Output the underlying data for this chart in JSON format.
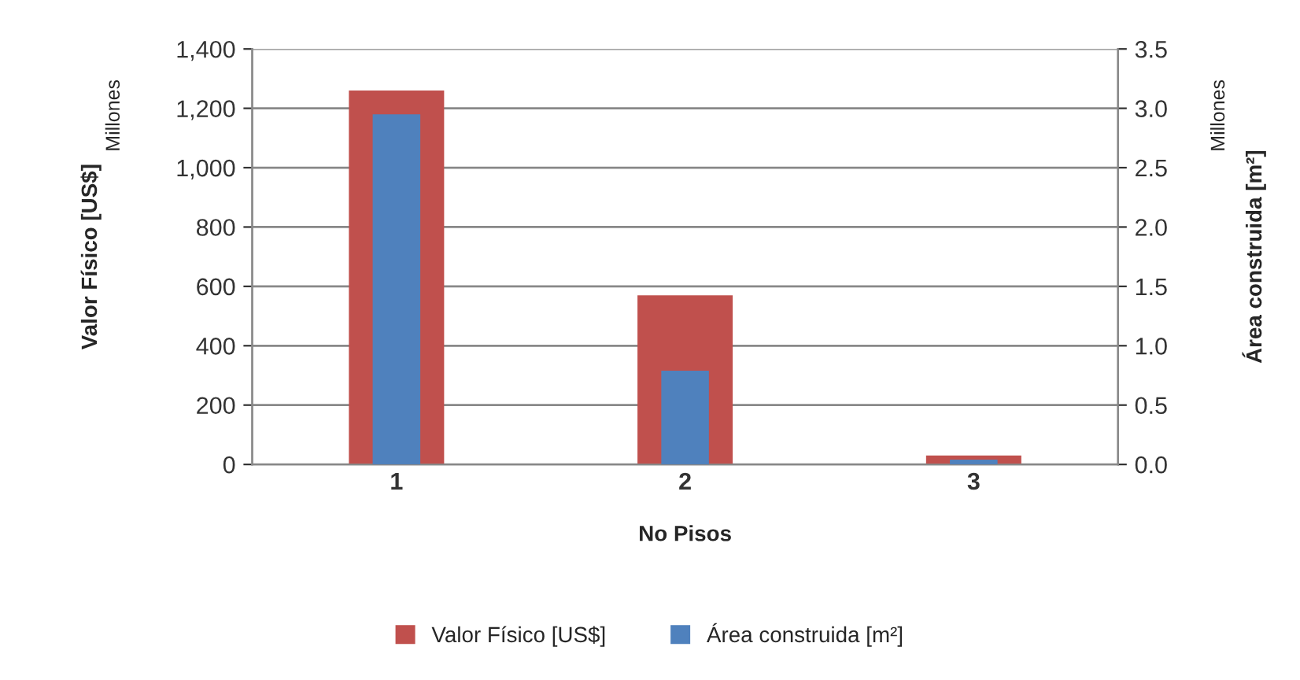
{
  "chart_data": {
    "type": "bar",
    "categories": [
      "1",
      "2",
      "3"
    ],
    "xlabel": "No Pisos",
    "ylabel": "Valor Físico [US$]",
    "y2label": "Área construida [m²]",
    "annotations": [
      "Millones",
      "Millones"
    ],
    "series": [
      {
        "name": "Valor Físico [US$]",
        "color": "#c0504d",
        "values": [
          1260,
          570,
          30
        ]
      },
      {
        "name": "Área construida [m²]",
        "color": "#4f81bd",
        "values": [
          2.95,
          0.79,
          0.04
        ],
        "axis": "y2"
      }
    ],
    "ylim": [
      0,
      1400
    ],
    "yticks": [
      0,
      200,
      400,
      600,
      800,
      {
        "value": 1000,
        "label": "1,000"
      },
      {
        "value": 1200,
        "label": "1,200"
      },
      {
        "value": 1400,
        "label": "1,400"
      }
    ],
    "y2lim": [
      0,
      3.5
    ],
    "y2ticks": [
      {
        "value": 0,
        "label": "0.0"
      },
      0.5,
      {
        "value": 1,
        "label": "1.0"
      },
      1.5,
      {
        "value": 2,
        "label": "2.0"
      },
      2.5,
      {
        "value": 3,
        "label": "3.0"
      },
      3.5
    ],
    "grid": "y",
    "legend": "bottom"
  }
}
